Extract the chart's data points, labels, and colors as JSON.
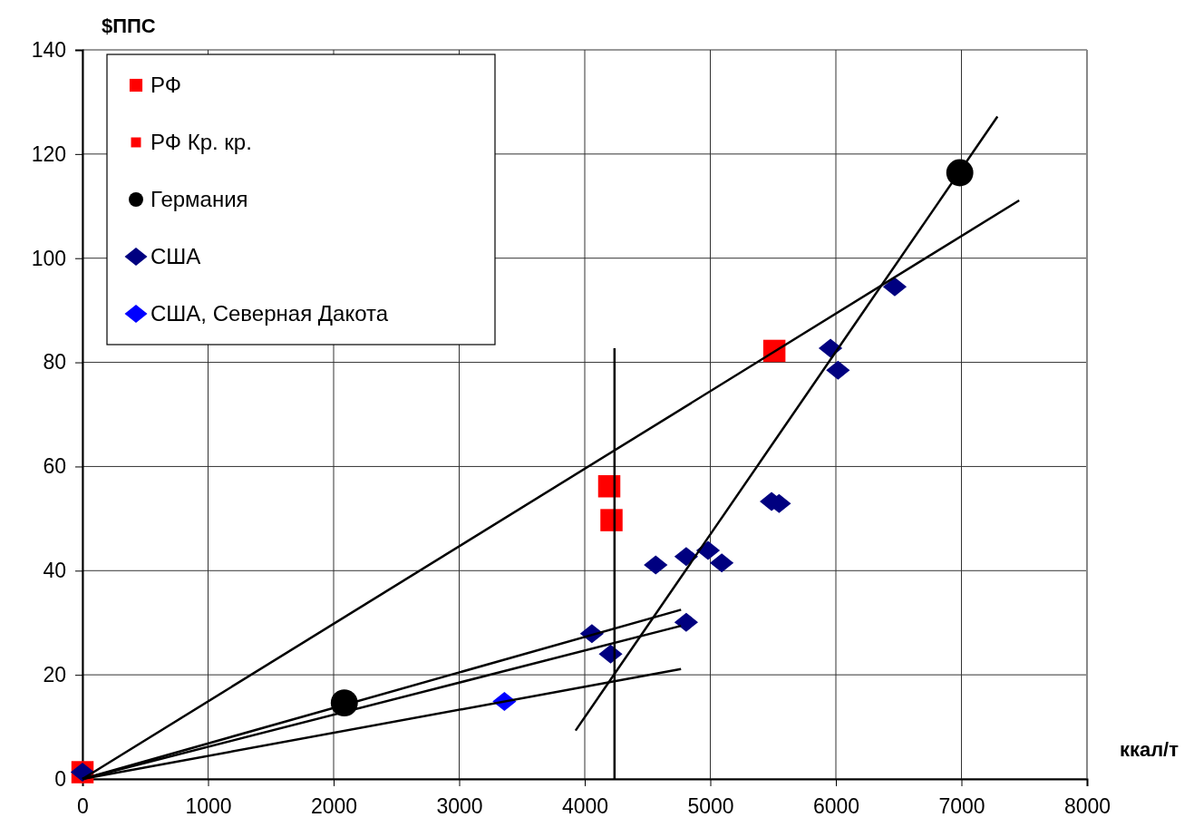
{
  "chart_data": {
    "type": "scatter",
    "xlabel": "ккал/т",
    "ylabel": "$ППС",
    "xlim": [
      0,
      8000
    ],
    "ylim": [
      0,
      140
    ],
    "xticks": [
      0,
      1000,
      2000,
      3000,
      4000,
      5000,
      6000,
      7000,
      8000
    ],
    "yticks": [
      0,
      20,
      40,
      60,
      80,
      100,
      120,
      140
    ],
    "grid": true,
    "legend": "top left",
    "series": [
      {
        "name": "РФ",
        "color": "#ff0000",
        "marker": "square",
        "x": [
          0,
          4195,
          5510
        ],
        "values": [
          1.3,
          56.2,
          82.2
        ]
      },
      {
        "name": "РФ Кр. кр.",
        "color": "#ff0000",
        "marker": "square",
        "x": [
          4213
        ],
        "values": [
          49.7
        ]
      },
      {
        "name": "Германия",
        "color": "#000000",
        "marker": "circle",
        "x": [
          2085,
          6987
        ],
        "values": [
          14.6,
          116.4
        ]
      },
      {
        "name": "США",
        "color": "#000080",
        "marker": "diamond",
        "x": [
          0,
          4057,
          4206,
          4565,
          4808,
          4808,
          4982,
          5091,
          5488,
          5548,
          5957,
          6017,
          6469
        ],
        "values": [
          1.3,
          27.9,
          24.0,
          41.1,
          42.7,
          30.1,
          43.9,
          41.5,
          53.3,
          52.9,
          82.7,
          78.5,
          94.5
        ]
      },
      {
        "name": "США, Северная Дакота",
        "color": "#0000ff",
        "marker": "diamond",
        "x": [
          3360
        ],
        "values": [
          14.9
        ]
      },
      {
        "type": "line",
        "color": "#000000",
        "x": [
          0,
          7460
        ],
        "values": [
          0,
          111.1
        ]
      },
      {
        "type": "line",
        "color": "#000000",
        "x": [
          0,
          4767
        ],
        "values": [
          0,
          32.5
        ]
      },
      {
        "type": "line",
        "color": "#000000",
        "x": [
          0,
          4767
        ],
        "values": [
          0,
          29.4
        ]
      },
      {
        "type": "line",
        "color": "#000000",
        "x": [
          0,
          4767
        ],
        "values": [
          0,
          21.1
        ]
      },
      {
        "type": "line",
        "color": "#000000",
        "x": [
          3927,
          7287
        ],
        "values": [
          9.3,
          127.2
        ]
      },
      {
        "type": "line",
        "color": "#000000",
        "x": [
          4237,
          4237
        ],
        "values": [
          82.7,
          0
        ]
      }
    ]
  }
}
